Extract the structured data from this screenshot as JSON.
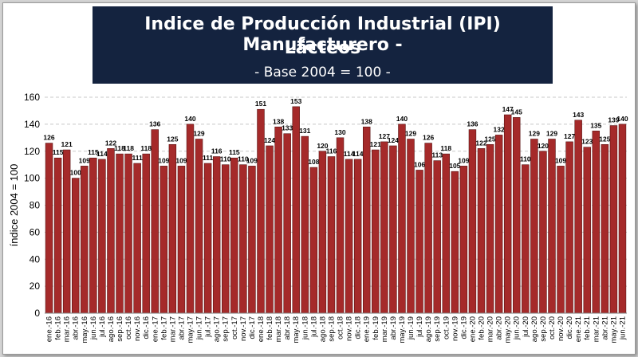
{
  "title_line1": "Indice de Producción Industrial (IPI) Manufacturero -",
  "title_line2": "Lácteos",
  "subtitle": "- Base 2004 = 100 -",
  "colors": {
    "bar": "#a52a2a",
    "bar_edge": "#5a1414",
    "title_bg": "#14233f",
    "grid": "#c8c8c8"
  },
  "chart_data": {
    "type": "bar",
    "title": "Indice de Producción Industrial (IPI) Manufacturero - Lácteos",
    "subtitle": "- Base 2004 = 100 -",
    "xlabel": "",
    "ylabel": "índice 2004 = 100",
    "ylim": [
      0,
      160
    ],
    "yticks": [
      0,
      20,
      40,
      60,
      80,
      100,
      120,
      140,
      160
    ],
    "grid": true,
    "grid_style": "dashed",
    "legend": "none",
    "categories": [
      "ene.-16",
      "feb.-16",
      "mar.-16",
      "abr.-16",
      "may.-16",
      "jun.-16",
      "jul.-16",
      "ago.-16",
      "sep.-16",
      "oct.-16",
      "nov.-16",
      "dic.-16",
      "ene.-17",
      "feb.-17",
      "mar.-17",
      "abr.-17",
      "may.-17",
      "jun.-17",
      "jul.-17",
      "ago.-17",
      "sep.-17",
      "oct.-17",
      "nov.-17",
      "dic.-17",
      "ene.-18",
      "feb.-18",
      "mar.-18",
      "abr.-18",
      "may.-18",
      "jun.-18",
      "jul.-18",
      "ago.-18",
      "sep.-18",
      "oct.-18",
      "nov.-18",
      "dic.-18",
      "ene.-19",
      "feb.-19",
      "mar.-19",
      "abr.-19",
      "may.-19",
      "jun.-19",
      "jul.-19",
      "ago.-19",
      "sep.-19",
      "oct.-19",
      "nov.-19",
      "dic.-19",
      "ene.-20",
      "feb.-20",
      "mar.-20",
      "abr.-20",
      "may.-20",
      "jun.-20",
      "jul.-20",
      "ago.-20",
      "sep.-20",
      "oct.-20",
      "nov.-20",
      "dic.-20",
      "ene.-21",
      "feb.-21",
      "mar.-21",
      "abr.-21",
      "may.-21",
      "jun.-21"
    ],
    "values": [
      126,
      115,
      121,
      100,
      109,
      115,
      114,
      122,
      118,
      118,
      111,
      118,
      136,
      109,
      125,
      109,
      140,
      129,
      111,
      116,
      110,
      115,
      110,
      109,
      151,
      124,
      138,
      133,
      153,
      131,
      108,
      120,
      116,
      130,
      114,
      114,
      138,
      121,
      127,
      124,
      140,
      129,
      106,
      126,
      113,
      118,
      105,
      109,
      136,
      122,
      125,
      132,
      147,
      145,
      110,
      129,
      120,
      129,
      109,
      127,
      143,
      123,
      135,
      125,
      139,
      140
    ]
  }
}
